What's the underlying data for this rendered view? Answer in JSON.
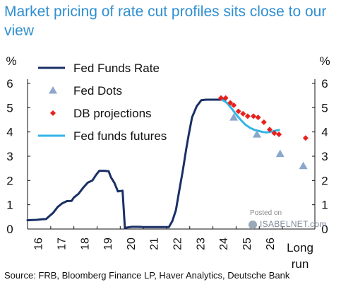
{
  "title": "Market pricing of rate cut profiles sits close to our view",
  "source": "Source: FRB, Bloomberg Finance LP, Haver Analytics, Deutsche Bank",
  "watermark": {
    "line1": "Posted on",
    "line2": "ISABELNET.com"
  },
  "chart_data": {
    "type": "line",
    "title": "Market pricing of rate cut profiles sits close to our view",
    "ylabel_left": "%",
    "ylabel_right": "%",
    "ylim": [
      0,
      6
    ],
    "yticks": [
      "0",
      "1",
      "2",
      "3",
      "4",
      "5",
      "6"
    ],
    "x_tick_labels": [
      "16",
      "17",
      "18",
      "19",
      "20",
      "21",
      "22",
      "23",
      "24",
      "25",
      "26",
      "Long run"
    ],
    "xlim": [
      2016.0,
      2028.4
    ],
    "grid": false,
    "legend_position": "top-left",
    "legend": [
      "Fed Funds Rate",
      "Fed Dots",
      "DB projections",
      "Fed funds futures"
    ],
    "colors": {
      "fed_funds_rate": "#1a2f66",
      "fed_dots": "#8aa7cc",
      "db_projections": "#e8211c",
      "fed_funds_futures": "#33b4e8",
      "title": "#2f8fd0"
    },
    "series": [
      {
        "name": "Fed Funds Rate",
        "type": "line",
        "points": [
          [
            2016.0,
            0.36
          ],
          [
            2016.2,
            0.37
          ],
          [
            2016.4,
            0.38
          ],
          [
            2016.6,
            0.4
          ],
          [
            2016.8,
            0.41
          ],
          [
            2016.95,
            0.54
          ],
          [
            2017.1,
            0.66
          ],
          [
            2017.3,
            0.91
          ],
          [
            2017.5,
            1.06
          ],
          [
            2017.7,
            1.15
          ],
          [
            2017.9,
            1.16
          ],
          [
            2018.0,
            1.3
          ],
          [
            2018.2,
            1.45
          ],
          [
            2018.4,
            1.7
          ],
          [
            2018.6,
            1.91
          ],
          [
            2018.8,
            2.0
          ],
          [
            2018.95,
            2.22
          ],
          [
            2019.1,
            2.4
          ],
          [
            2019.3,
            2.4
          ],
          [
            2019.5,
            2.38
          ],
          [
            2019.6,
            2.13
          ],
          [
            2019.75,
            1.9
          ],
          [
            2019.9,
            1.55
          ],
          [
            2020.1,
            1.58
          ],
          [
            2020.2,
            0.05
          ],
          [
            2020.5,
            0.09
          ],
          [
            2020.8,
            0.09
          ],
          [
            2021.0,
            0.08
          ],
          [
            2021.5,
            0.08
          ],
          [
            2021.9,
            0.08
          ],
          [
            2022.1,
            0.08
          ],
          [
            2022.25,
            0.33
          ],
          [
            2022.4,
            0.77
          ],
          [
            2022.55,
            1.6
          ],
          [
            2022.7,
            2.4
          ],
          [
            2022.85,
            3.3
          ],
          [
            2022.95,
            3.85
          ],
          [
            2023.1,
            4.6
          ],
          [
            2023.3,
            5.06
          ],
          [
            2023.5,
            5.31
          ],
          [
            2023.7,
            5.33
          ],
          [
            2024.0,
            5.33
          ],
          [
            2024.3,
            5.33
          ],
          [
            2024.55,
            5.33
          ]
        ]
      },
      {
        "name": "Fed Dots",
        "type": "scatter",
        "points": [
          [
            2024.9,
            4.6
          ],
          [
            2025.9,
            3.9
          ],
          [
            2026.9,
            3.1
          ],
          [
            2027.9,
            2.6
          ]
        ]
      },
      {
        "name": "DB projections",
        "type": "scatter",
        "points": [
          [
            2024.35,
            5.4
          ],
          [
            2024.55,
            5.4
          ],
          [
            2024.75,
            5.2
          ],
          [
            2024.9,
            5.1
          ],
          [
            2025.1,
            4.85
          ],
          [
            2025.3,
            4.75
          ],
          [
            2025.5,
            4.65
          ],
          [
            2025.75,
            4.65
          ],
          [
            2025.95,
            4.6
          ],
          [
            2026.2,
            4.4
          ],
          [
            2026.45,
            4.1
          ],
          [
            2026.65,
            3.95
          ],
          [
            2026.85,
            3.9
          ],
          [
            2028.0,
            3.75
          ]
        ]
      },
      {
        "name": "Fed funds futures",
        "type": "line",
        "points": [
          [
            2024.4,
            5.33
          ],
          [
            2024.6,
            5.2
          ],
          [
            2024.8,
            4.98
          ],
          [
            2025.0,
            4.72
          ],
          [
            2025.2,
            4.5
          ],
          [
            2025.4,
            4.3
          ],
          [
            2025.6,
            4.17
          ],
          [
            2025.8,
            4.08
          ],
          [
            2025.95,
            4.05
          ],
          [
            2026.15,
            4.0
          ],
          [
            2026.3,
            3.98
          ],
          [
            2026.45,
            4.0
          ],
          [
            2026.6,
            4.03
          ],
          [
            2026.85,
            4.08
          ]
        ]
      }
    ]
  }
}
